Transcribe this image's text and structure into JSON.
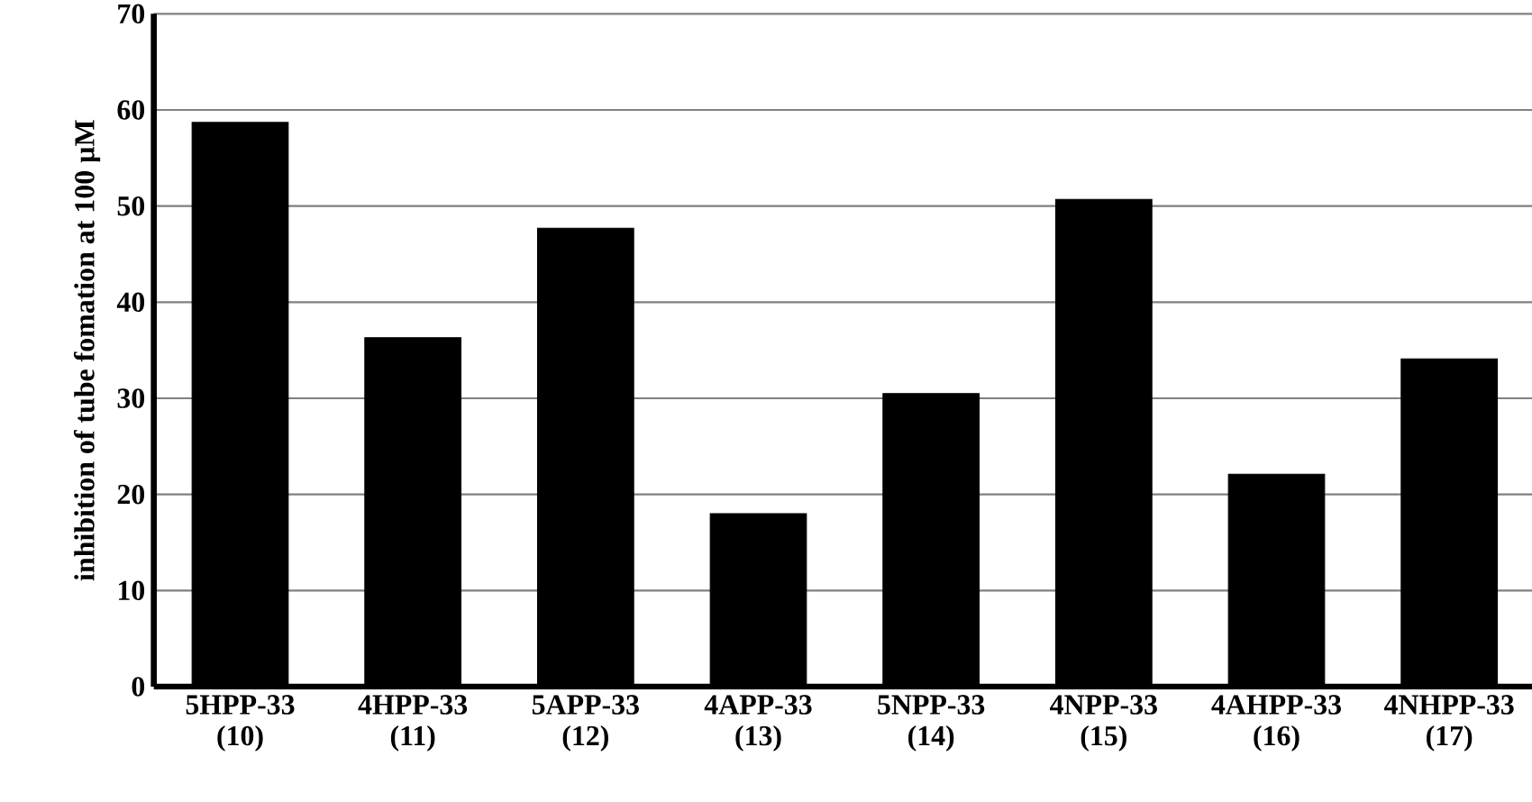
{
  "chart_data": {
    "type": "bar",
    "ylabel": "inhibition of tube fomation at 100 µM",
    "categories": [
      "5HPP-33 (10)",
      "4HPP-33 (11)",
      "5APP-33 (12)",
      "4APP-33 (13)",
      "5NPP-33 (14)",
      "4NPP-33 (15)",
      "4AHPP-33 (16)",
      "4NHPP-33 (17)"
    ],
    "values": [
      58.7,
      36.3,
      47.7,
      18.0,
      30.5,
      50.7,
      22.1,
      34.1
    ],
    "color": "#000000",
    "ylim": [
      0,
      70
    ],
    "yticks": [
      0,
      10,
      20,
      30,
      40,
      50,
      60,
      70
    ],
    "grid": "y"
  }
}
